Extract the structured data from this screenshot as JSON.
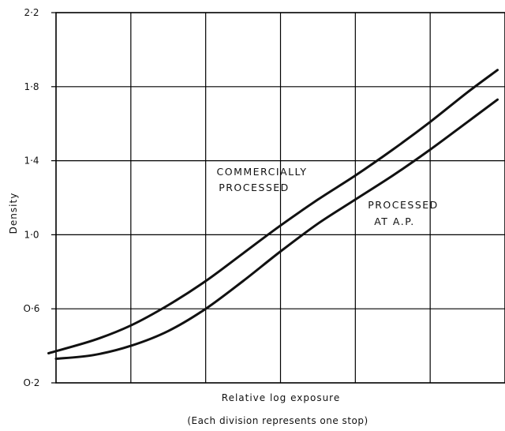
{
  "chart_data": {
    "type": "line",
    "xlabel": "Relative log exposure",
    "xnote": "(Each division represents one stop)",
    "ylabel": "Density",
    "xlim": [
      0,
      6
    ],
    "ylim": [
      0.2,
      2.2
    ],
    "yticks": [
      {
        "value": 0.2,
        "label": "O·2"
      },
      {
        "value": 0.6,
        "label": "O·6"
      },
      {
        "value": 1.0,
        "label": "1·0"
      },
      {
        "value": 1.4,
        "label": "1·4"
      },
      {
        "value": 1.8,
        "label": "1·8"
      },
      {
        "value": 2.2,
        "label": "2·2"
      }
    ],
    "x_divisions": [
      0,
      1,
      2,
      3,
      4,
      5,
      6
    ],
    "grid": true,
    "series": [
      {
        "name": "COMMERCIALLY PROCESSED",
        "label_lines": [
          "COMMERCIALLY",
          "PROCESSED"
        ],
        "x": [
          -0.1,
          0.5,
          1.0,
          1.5,
          2.0,
          2.5,
          3.0,
          3.5,
          4.0,
          4.5,
          5.0,
          5.5,
          5.9
        ],
        "y": [
          0.36,
          0.43,
          0.51,
          0.62,
          0.75,
          0.9,
          1.05,
          1.19,
          1.32,
          1.46,
          1.61,
          1.77,
          1.89
        ]
      },
      {
        "name": "PROCESSED AT A.P.",
        "label_lines": [
          "PROCESSED",
          "AT A.P."
        ],
        "x": [
          0.0,
          0.5,
          1.0,
          1.5,
          2.0,
          2.5,
          3.0,
          3.5,
          4.0,
          4.5,
          5.0,
          5.5,
          5.9
        ],
        "y": [
          0.33,
          0.35,
          0.4,
          0.48,
          0.6,
          0.75,
          0.91,
          1.06,
          1.19,
          1.32,
          1.46,
          1.61,
          1.73
        ]
      }
    ]
  }
}
